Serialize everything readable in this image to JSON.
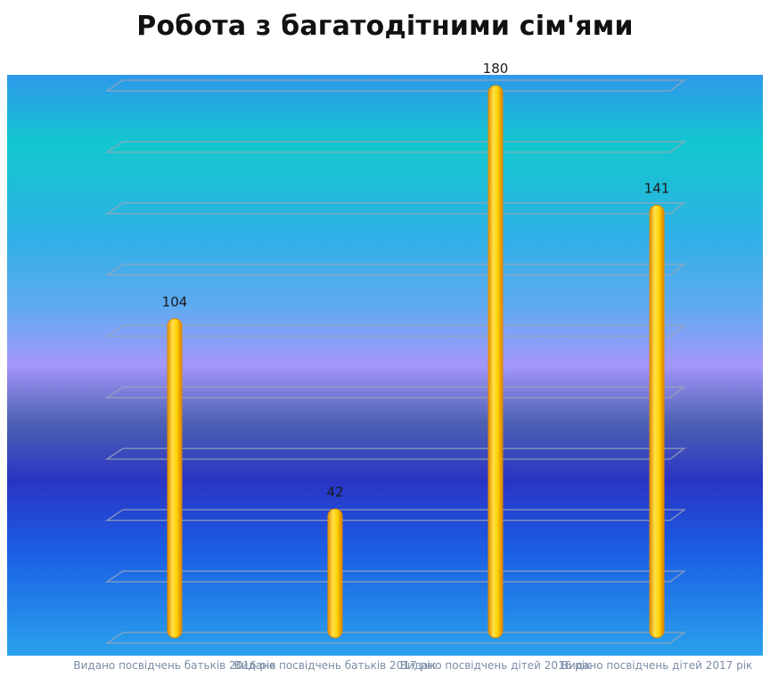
{
  "chart_data": {
    "type": "bar",
    "title": "Робота з багатодітними сім'ями",
    "categories": [
      "Видано посвідчень батьків 2016 рік",
      "Видано посвідчень батьків 2017 рік",
      "Видано посвідчень дітей 2016 рік",
      "Видано посвідчень дітей 2017 рік"
    ],
    "values": [
      104,
      42,
      180,
      141
    ],
    "data_labels": [
      "104",
      "42",
      "180",
      "141"
    ],
    "ylim": [
      0,
      180
    ],
    "grid": true,
    "legend": "none",
    "colors": {
      "bar": "#ffd200",
      "bar_edge": "#e08a00",
      "grid": "#9aa6b8"
    }
  }
}
